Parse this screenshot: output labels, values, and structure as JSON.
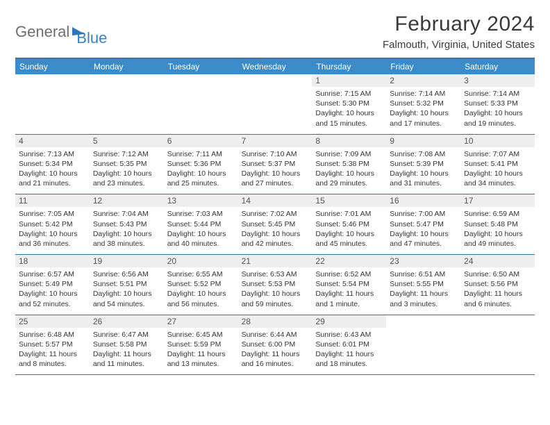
{
  "logo": {
    "part1": "General",
    "part2": "Blue"
  },
  "title": "February 2024",
  "location": "Falmouth, Virginia, United States",
  "colors": {
    "header_bg": "#3b8bc9",
    "border": "#2e75b6",
    "daynum_bg": "#eeeeee",
    "text": "#333333",
    "title_text": "#3a3a3a"
  },
  "day_names": [
    "Sunday",
    "Monday",
    "Tuesday",
    "Wednesday",
    "Thursday",
    "Friday",
    "Saturday"
  ],
  "weeks": [
    [
      null,
      null,
      null,
      null,
      {
        "n": "1",
        "sr": "Sunrise: 7:15 AM",
        "ss": "Sunset: 5:30 PM",
        "dl": "Daylight: 10 hours and 15 minutes."
      },
      {
        "n": "2",
        "sr": "Sunrise: 7:14 AM",
        "ss": "Sunset: 5:32 PM",
        "dl": "Daylight: 10 hours and 17 minutes."
      },
      {
        "n": "3",
        "sr": "Sunrise: 7:14 AM",
        "ss": "Sunset: 5:33 PM",
        "dl": "Daylight: 10 hours and 19 minutes."
      }
    ],
    [
      {
        "n": "4",
        "sr": "Sunrise: 7:13 AM",
        "ss": "Sunset: 5:34 PM",
        "dl": "Daylight: 10 hours and 21 minutes."
      },
      {
        "n": "5",
        "sr": "Sunrise: 7:12 AM",
        "ss": "Sunset: 5:35 PM",
        "dl": "Daylight: 10 hours and 23 minutes."
      },
      {
        "n": "6",
        "sr": "Sunrise: 7:11 AM",
        "ss": "Sunset: 5:36 PM",
        "dl": "Daylight: 10 hours and 25 minutes."
      },
      {
        "n": "7",
        "sr": "Sunrise: 7:10 AM",
        "ss": "Sunset: 5:37 PM",
        "dl": "Daylight: 10 hours and 27 minutes."
      },
      {
        "n": "8",
        "sr": "Sunrise: 7:09 AM",
        "ss": "Sunset: 5:38 PM",
        "dl": "Daylight: 10 hours and 29 minutes."
      },
      {
        "n": "9",
        "sr": "Sunrise: 7:08 AM",
        "ss": "Sunset: 5:39 PM",
        "dl": "Daylight: 10 hours and 31 minutes."
      },
      {
        "n": "10",
        "sr": "Sunrise: 7:07 AM",
        "ss": "Sunset: 5:41 PM",
        "dl": "Daylight: 10 hours and 34 minutes."
      }
    ],
    [
      {
        "n": "11",
        "sr": "Sunrise: 7:05 AM",
        "ss": "Sunset: 5:42 PM",
        "dl": "Daylight: 10 hours and 36 minutes."
      },
      {
        "n": "12",
        "sr": "Sunrise: 7:04 AM",
        "ss": "Sunset: 5:43 PM",
        "dl": "Daylight: 10 hours and 38 minutes."
      },
      {
        "n": "13",
        "sr": "Sunrise: 7:03 AM",
        "ss": "Sunset: 5:44 PM",
        "dl": "Daylight: 10 hours and 40 minutes."
      },
      {
        "n": "14",
        "sr": "Sunrise: 7:02 AM",
        "ss": "Sunset: 5:45 PM",
        "dl": "Daylight: 10 hours and 42 minutes."
      },
      {
        "n": "15",
        "sr": "Sunrise: 7:01 AM",
        "ss": "Sunset: 5:46 PM",
        "dl": "Daylight: 10 hours and 45 minutes."
      },
      {
        "n": "16",
        "sr": "Sunrise: 7:00 AM",
        "ss": "Sunset: 5:47 PM",
        "dl": "Daylight: 10 hours and 47 minutes."
      },
      {
        "n": "17",
        "sr": "Sunrise: 6:59 AM",
        "ss": "Sunset: 5:48 PM",
        "dl": "Daylight: 10 hours and 49 minutes."
      }
    ],
    [
      {
        "n": "18",
        "sr": "Sunrise: 6:57 AM",
        "ss": "Sunset: 5:49 PM",
        "dl": "Daylight: 10 hours and 52 minutes."
      },
      {
        "n": "19",
        "sr": "Sunrise: 6:56 AM",
        "ss": "Sunset: 5:51 PM",
        "dl": "Daylight: 10 hours and 54 minutes."
      },
      {
        "n": "20",
        "sr": "Sunrise: 6:55 AM",
        "ss": "Sunset: 5:52 PM",
        "dl": "Daylight: 10 hours and 56 minutes."
      },
      {
        "n": "21",
        "sr": "Sunrise: 6:53 AM",
        "ss": "Sunset: 5:53 PM",
        "dl": "Daylight: 10 hours and 59 minutes."
      },
      {
        "n": "22",
        "sr": "Sunrise: 6:52 AM",
        "ss": "Sunset: 5:54 PM",
        "dl": "Daylight: 11 hours and 1 minute."
      },
      {
        "n": "23",
        "sr": "Sunrise: 6:51 AM",
        "ss": "Sunset: 5:55 PM",
        "dl": "Daylight: 11 hours and 3 minutes."
      },
      {
        "n": "24",
        "sr": "Sunrise: 6:50 AM",
        "ss": "Sunset: 5:56 PM",
        "dl": "Daylight: 11 hours and 6 minutes."
      }
    ],
    [
      {
        "n": "25",
        "sr": "Sunrise: 6:48 AM",
        "ss": "Sunset: 5:57 PM",
        "dl": "Daylight: 11 hours and 8 minutes."
      },
      {
        "n": "26",
        "sr": "Sunrise: 6:47 AM",
        "ss": "Sunset: 5:58 PM",
        "dl": "Daylight: 11 hours and 11 minutes."
      },
      {
        "n": "27",
        "sr": "Sunrise: 6:45 AM",
        "ss": "Sunset: 5:59 PM",
        "dl": "Daylight: 11 hours and 13 minutes."
      },
      {
        "n": "28",
        "sr": "Sunrise: 6:44 AM",
        "ss": "Sunset: 6:00 PM",
        "dl": "Daylight: 11 hours and 16 minutes."
      },
      {
        "n": "29",
        "sr": "Sunrise: 6:43 AM",
        "ss": "Sunset: 6:01 PM",
        "dl": "Daylight: 11 hours and 18 minutes."
      },
      null,
      null
    ]
  ]
}
